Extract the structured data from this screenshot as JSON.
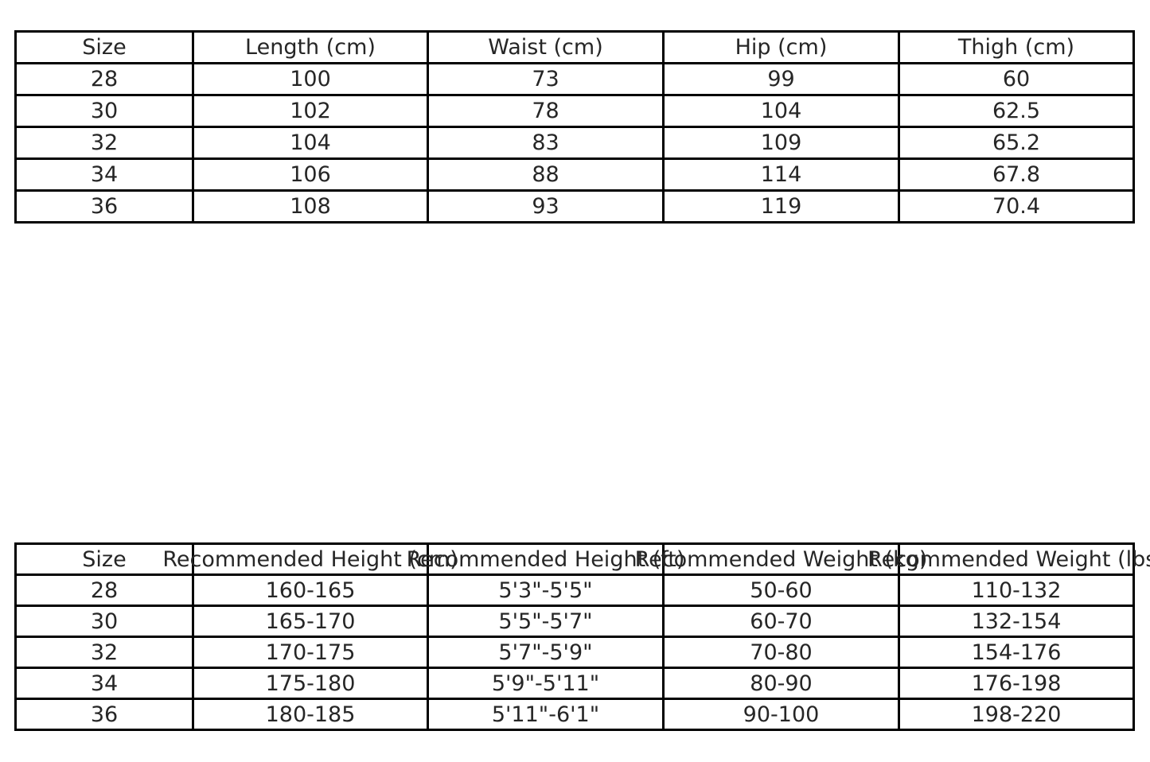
{
  "page": {
    "background": "#ffffff",
    "text_color": "#262626",
    "border_color": "#000000"
  },
  "chart_data": [
    {
      "type": "table",
      "name": "garment-measurements",
      "columns": [
        "Size",
        "Length (cm)",
        "Waist (cm)",
        "Hip (cm)",
        "Thigh (cm)"
      ],
      "rows": [
        [
          "28",
          "100",
          "73",
          "99",
          "60"
        ],
        [
          "30",
          "102",
          "78",
          "104",
          "62.5"
        ],
        [
          "32",
          "104",
          "83",
          "109",
          "65.2"
        ],
        [
          "34",
          "106",
          "88",
          "114",
          "67.8"
        ],
        [
          "36",
          "108",
          "93",
          "119",
          "70.4"
        ]
      ]
    },
    {
      "type": "table",
      "name": "size-recommendations",
      "columns": [
        "Size",
        "Recommended Height (cm)",
        "Recommended Height (ft)",
        "Recommended Weight (kg)",
        "Recommended Weight (lbs)"
      ],
      "rows": [
        [
          "28",
          "160-165",
          "5'3\"-5'5\"",
          "50-60",
          "110-132"
        ],
        [
          "30",
          "165-170",
          "5'5\"-5'7\"",
          "60-70",
          "132-154"
        ],
        [
          "32",
          "170-175",
          "5'7\"-5'9\"",
          "70-80",
          "154-176"
        ],
        [
          "34",
          "175-180",
          "5'9\"-5'11\"",
          "80-90",
          "176-198"
        ],
        [
          "36",
          "180-185",
          "5'11\"-6'1\"",
          "90-100",
          "198-220"
        ]
      ]
    }
  ]
}
